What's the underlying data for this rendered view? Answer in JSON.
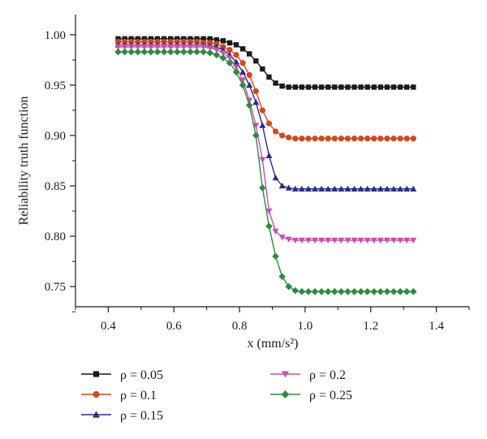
{
  "chart_data": {
    "type": "line",
    "xlabel": "x (mm/s²)",
    "ylabel": "Reliability truth function",
    "xlim": [
      0.3,
      1.5
    ],
    "ylim": [
      0.73,
      1.02
    ],
    "xticks": [
      0.4,
      0.6,
      0.8,
      1.0,
      1.2,
      1.4
    ],
    "xtick_labels": [
      "0.4",
      "0.6",
      "0.8",
      "1.0",
      "1.2",
      "1.4"
    ],
    "yticks": [
      0.75,
      0.8,
      0.85,
      0.9,
      0.95,
      1.0
    ],
    "ytick_labels": [
      "0.75",
      "0.80",
      "0.85",
      "0.90",
      "0.95",
      "1.00"
    ],
    "grid": false,
    "legend_position": "bottom",
    "x": [
      0.43,
      0.45,
      0.47,
      0.49,
      0.51,
      0.53,
      0.55,
      0.57,
      0.59,
      0.61,
      0.63,
      0.65,
      0.67,
      0.69,
      0.71,
      0.73,
      0.75,
      0.77,
      0.79,
      0.81,
      0.83,
      0.85,
      0.87,
      0.89,
      0.91,
      0.93,
      0.95,
      0.97,
      0.99,
      1.01,
      1.03,
      1.05,
      1.07,
      1.09,
      1.11,
      1.13,
      1.15,
      1.17,
      1.19,
      1.21,
      1.23,
      1.25,
      1.27,
      1.29,
      1.31,
      1.33
    ],
    "series": [
      {
        "name": "ρ = 0.05",
        "color": "#1a1a1a",
        "marker": "square",
        "values": [
          0.996,
          0.996,
          0.996,
          0.996,
          0.996,
          0.996,
          0.996,
          0.996,
          0.996,
          0.996,
          0.996,
          0.996,
          0.996,
          0.996,
          0.996,
          0.995,
          0.994,
          0.992,
          0.99,
          0.986,
          0.981,
          0.974,
          0.966,
          0.958,
          0.952,
          0.949,
          0.948,
          0.948,
          0.948,
          0.948,
          0.948,
          0.948,
          0.948,
          0.948,
          0.948,
          0.948,
          0.948,
          0.948,
          0.948,
          0.948,
          0.948,
          0.948,
          0.948,
          0.948,
          0.948,
          0.948
        ]
      },
      {
        "name": "ρ = 0.1",
        "color": "#d6471b",
        "marker": "circle",
        "values": [
          0.993,
          0.993,
          0.993,
          0.993,
          0.993,
          0.993,
          0.993,
          0.993,
          0.993,
          0.993,
          0.993,
          0.993,
          0.993,
          0.992,
          0.992,
          0.991,
          0.988,
          0.985,
          0.98,
          0.972,
          0.96,
          0.944,
          0.925,
          0.912,
          0.904,
          0.9,
          0.898,
          0.897,
          0.897,
          0.897,
          0.897,
          0.897,
          0.897,
          0.897,
          0.897,
          0.897,
          0.897,
          0.897,
          0.897,
          0.897,
          0.897,
          0.897,
          0.897,
          0.897,
          0.897,
          0.897
        ]
      },
      {
        "name": "ρ = 0.15",
        "color": "#2a2c8a",
        "marker": "triangle-up",
        "values": [
          0.99,
          0.99,
          0.99,
          0.99,
          0.99,
          0.99,
          0.99,
          0.99,
          0.99,
          0.99,
          0.99,
          0.99,
          0.99,
          0.99,
          0.989,
          0.988,
          0.985,
          0.98,
          0.973,
          0.963,
          0.95,
          0.933,
          0.91,
          0.88,
          0.858,
          0.85,
          0.848,
          0.847,
          0.847,
          0.847,
          0.847,
          0.847,
          0.847,
          0.847,
          0.847,
          0.847,
          0.847,
          0.847,
          0.847,
          0.847,
          0.847,
          0.847,
          0.847,
          0.847,
          0.847,
          0.847
        ]
      },
      {
        "name": "ρ = 0.2",
        "color": "#c84fb0",
        "marker": "triangle-down",
        "values": [
          0.988,
          0.988,
          0.988,
          0.988,
          0.988,
          0.988,
          0.988,
          0.988,
          0.988,
          0.988,
          0.988,
          0.988,
          0.988,
          0.988,
          0.987,
          0.985,
          0.982,
          0.977,
          0.968,
          0.955,
          0.935,
          0.91,
          0.876,
          0.825,
          0.805,
          0.799,
          0.797,
          0.796,
          0.796,
          0.796,
          0.796,
          0.796,
          0.796,
          0.796,
          0.796,
          0.796,
          0.796,
          0.796,
          0.796,
          0.796,
          0.796,
          0.796,
          0.796,
          0.796,
          0.796,
          0.796
        ]
      },
      {
        "name": "ρ = 0.25",
        "color": "#2e8b3e",
        "marker": "diamond",
        "values": [
          0.983,
          0.983,
          0.983,
          0.983,
          0.983,
          0.983,
          0.983,
          0.983,
          0.983,
          0.983,
          0.983,
          0.983,
          0.983,
          0.983,
          0.982,
          0.98,
          0.977,
          0.972,
          0.963,
          0.95,
          0.93,
          0.9,
          0.848,
          0.81,
          0.78,
          0.76,
          0.75,
          0.746,
          0.745,
          0.745,
          0.745,
          0.745,
          0.745,
          0.745,
          0.745,
          0.745,
          0.745,
          0.745,
          0.745,
          0.745,
          0.745,
          0.745,
          0.745,
          0.745,
          0.745,
          0.745
        ]
      }
    ]
  }
}
